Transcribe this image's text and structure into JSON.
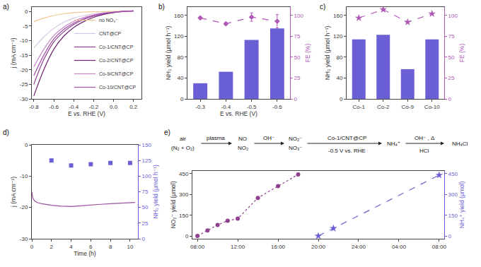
{
  "chart_data": [
    {
      "type": "line",
      "title": "a)",
      "x_label": "E vs. RHE (V)",
      "y_label": "j (mA cm⁻²)",
      "xlim": [
        -0.82,
        0.28
      ],
      "xticks": [
        -0.8,
        -0.6,
        -0.4,
        -0.2,
        {
          "value": 0,
          "label": "0.0"
        },
        0.2
      ],
      "ylim": [
        -30,
        1.5
      ],
      "yticks": [
        -30,
        -25,
        -20,
        -15,
        -10,
        -5,
        0
      ],
      "legend": "lower right",
      "x": [
        -0.8,
        -0.7,
        -0.6,
        -0.5,
        -0.4,
        -0.3,
        -0.2,
        -0.1,
        0,
        0.1,
        0.2
      ],
      "series": [
        {
          "name": "no NO₃⁻",
          "color": "#f0c890",
          "values": [
            -3.5,
            -2.3,
            -1.4,
            -0.8,
            -0.4,
            -0.2,
            -0.1,
            -0.05,
            0,
            0,
            0
          ]
        },
        {
          "name": "CNT@CP",
          "color": "#d6c6e6",
          "values": [
            -12.5,
            -8.8,
            -5.8,
            -3.7,
            -2.3,
            -1.4,
            -0.8,
            -0.4,
            -0.2,
            -0.1,
            0
          ]
        },
        {
          "name": "Co-1/CNT@CP",
          "color": "#8e3f8e",
          "values": [
            -25,
            -16.5,
            -10.5,
            -7,
            -4.5,
            -2.8,
            -1.6,
            -0.8,
            -0.3,
            0,
            0.2
          ]
        },
        {
          "name": "Co-2/CNT@CP",
          "color": "#6e2270",
          "values": [
            -29,
            -20,
            -13,
            -8.5,
            -5.5,
            -3.5,
            -2,
            -1,
            -0.4,
            0,
            0.2
          ]
        },
        {
          "name": "Co-9/CNT@CP",
          "color": "#c884c8",
          "values": [
            -19,
            -13,
            -8.3,
            -5.4,
            -3.4,
            -2.1,
            -1.2,
            -0.6,
            -0.2,
            0,
            0.1
          ]
        },
        {
          "name": "Co-10/CNT@CP",
          "color": "#a24fa8",
          "values": [
            -22,
            -15,
            -9.5,
            -6.2,
            -4,
            -2.5,
            -1.4,
            -0.7,
            -0.3,
            0,
            0.2
          ]
        }
      ]
    },
    {
      "type": "bar",
      "title": "b)",
      "x_label": "E vs. RHE (V)",
      "y_label": "NH₃ yield (μmol h⁻¹)",
      "y2_label": "FE (%)",
      "categories": [
        "-0.3",
        "-0.4",
        "-0.5",
        "-0.6"
      ],
      "ylim": [
        0,
        176
      ],
      "yticks": [
        0,
        40,
        80,
        120,
        160
      ],
      "y2lim": [
        0,
        110
      ],
      "y2ticks": [
        0,
        25,
        50,
        75,
        100
      ],
      "series": [
        {
          "type": "bar",
          "color": "#6b5fd6",
          "values": [
            30,
            52,
            113,
            135
          ]
        },
        {
          "type": "line",
          "axis": "y2",
          "color": "#b05ab8",
          "marker": "diamond",
          "line_style": "dash",
          "values": [
            97,
            90,
            98,
            93
          ],
          "errors": [
            1.5,
            1.5,
            5,
            8
          ]
        }
      ]
    },
    {
      "type": "bar",
      "title": "c)",
      "y_label": "NH₃ yield (μmol h⁻¹)",
      "y2_label": "FE (%)",
      "categories": [
        "Co-1",
        "Co-2",
        "Co-9",
        "Co-10"
      ],
      "ylim": [
        0,
        176
      ],
      "yticks": [
        0,
        40,
        80,
        120,
        160
      ],
      "y2lim": [
        0,
        110
      ],
      "y2ticks": [
        0,
        25,
        50,
        75,
        100
      ],
      "series": [
        {
          "type": "bar",
          "color": "#6b5fd6",
          "values": [
            114,
            123,
            57,
            114
          ]
        },
        {
          "type": "line",
          "axis": "y2",
          "color": "#b05ab8",
          "marker": "star",
          "line_style": "dash",
          "values": [
            97,
            107,
            92,
            102
          ]
        }
      ]
    },
    {
      "type": "line",
      "title": "d)",
      "x_label": "Time (h)",
      "y_label": "j (mA cm⁻²)",
      "y2_label": "NH₃ yield (μmol h⁻¹)",
      "xlim": [
        0,
        10.8
      ],
      "xticks": [
        0,
        2,
        4,
        6,
        8,
        10
      ],
      "ylim": [
        -30,
        0
      ],
      "yticks": [
        -30,
        -20,
        -10,
        0
      ],
      "y2lim": [
        0,
        150
      ],
      "y2ticks": [
        0,
        25,
        50,
        75,
        100,
        125,
        150
      ],
      "series": [
        {
          "type": "line",
          "color": "#9b4f9f",
          "x": [
            0,
            0.1,
            0.3,
            0.6,
            1,
            2,
            3,
            4,
            5,
            6,
            7,
            8,
            9,
            10,
            10.5
          ],
          "values": [
            -15,
            -17,
            -18,
            -18.5,
            -18.8,
            -19.3,
            -19.6,
            -19.7,
            -19.5,
            -19.2,
            -19,
            -18.8,
            -18.6,
            -18.5,
            -18.4
          ]
        },
        {
          "type": "scatter",
          "axis": "y2",
          "color": "#6b5fd6",
          "marker": "square",
          "x": [
            2,
            4,
            6,
            8,
            10
          ],
          "values": [
            125,
            117,
            119,
            121,
            121
          ]
        }
      ]
    },
    {
      "type": "line",
      "title": "e)",
      "y_label": "NO₂⁻ yield (μmol)",
      "y2_label": "NH₄⁺ yield (μmol)",
      "xlim": [
        7.5,
        32.5
      ],
      "xticks": [
        {
          "value": 8,
          "label": "08:00"
        },
        {
          "value": 12,
          "label": "12:00"
        },
        {
          "value": 16,
          "label": "16:00"
        },
        {
          "value": 20,
          "label": "20:00"
        },
        {
          "value": 24,
          "label": "24:00"
        },
        {
          "value": 28,
          "label": "04:00"
        },
        {
          "value": 32,
          "label": "08:00"
        }
      ],
      "ylim": [
        -20,
        470
      ],
      "yticks": [
        0,
        150,
        300,
        450
      ],
      "y2lim": [
        -20,
        470
      ],
      "y2ticks": [
        0,
        150,
        300,
        450
      ],
      "annotations": [
        "air",
        "(N₂ + O₂)",
        "plasma",
        "NO",
        "NO₂",
        "OH⁻",
        "NO₂⁻",
        "NO₃⁻",
        "Co-1/CNT@CP",
        "-0.5 V vs. RHE",
        "NH₄⁺",
        "OH⁻ , Δ",
        "HCl",
        "NH₄Cl"
      ],
      "series": [
        {
          "type": "line",
          "color": "#8e3f8e",
          "marker": "circle",
          "line_style": "dot",
          "x": [
            8,
            9,
            10,
            11,
            12,
            14,
            16,
            18
          ],
          "values": [
            0,
            40,
            80,
            110,
            125,
            275,
            360,
            445
          ]
        },
        {
          "type": "line",
          "axis": "y2",
          "color": "#6b5fd6",
          "marker": "star",
          "line_style": "dash",
          "x": [
            20,
            21.5,
            32
          ],
          "values": [
            0,
            55,
            440
          ]
        }
      ]
    }
  ]
}
